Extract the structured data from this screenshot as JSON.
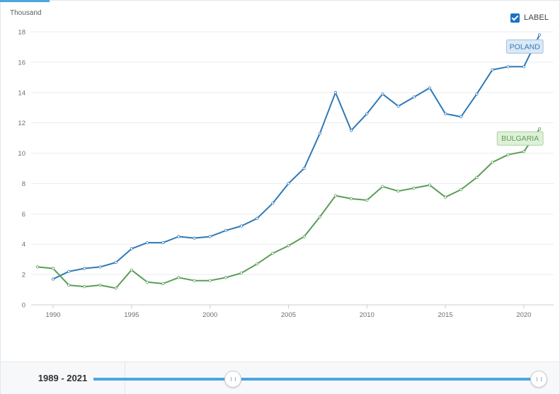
{
  "chart_data": {
    "type": "line",
    "unit_label": "Thousand",
    "legend_label": "LABEL",
    "legend_checked": true,
    "x_ticks": [
      1990,
      1995,
      2000,
      2005,
      2010,
      2015,
      2020
    ],
    "y_ticks": [
      0,
      2,
      4,
      6,
      8,
      10,
      12,
      14,
      16,
      18
    ],
    "xlim": [
      1988.6,
      2021.9
    ],
    "ylim": [
      0,
      18
    ],
    "grid": "horizontal",
    "series": [
      {
        "name": "POLAND",
        "color": "#2e78b7",
        "label_bg": "#dce9f5",
        "label_border": "#9dbfdf",
        "points": [
          [
            1990,
            1.7
          ],
          [
            1991,
            2.2
          ],
          [
            1992,
            2.4
          ],
          [
            1993,
            2.5
          ],
          [
            1994,
            2.8
          ],
          [
            1995,
            3.7
          ],
          [
            1996,
            4.1
          ],
          [
            1997,
            4.1
          ],
          [
            1998,
            4.5
          ],
          [
            1999,
            4.4
          ],
          [
            2000,
            4.5
          ],
          [
            2001,
            4.9
          ],
          [
            2002,
            5.2
          ],
          [
            2003,
            5.7
          ],
          [
            2004,
            6.7
          ],
          [
            2005,
            8.0
          ],
          [
            2006,
            9.0
          ],
          [
            2007,
            11.3
          ],
          [
            2008,
            14.0
          ],
          [
            2009,
            11.5
          ],
          [
            2010,
            12.6
          ],
          [
            2011,
            13.9
          ],
          [
            2012,
            13.1
          ],
          [
            2013,
            13.7
          ],
          [
            2014,
            14.3
          ],
          [
            2015,
            12.6
          ],
          [
            2016,
            12.4
          ],
          [
            2017,
            13.9
          ],
          [
            2018,
            15.5
          ],
          [
            2019,
            15.7
          ],
          [
            2020,
            15.7
          ],
          [
            2021,
            17.8
          ]
        ]
      },
      {
        "name": "BULGARIA",
        "color": "#5a9e55",
        "label_bg": "#dff0d8",
        "label_border": "#a8d09e",
        "points": [
          [
            1989,
            2.5
          ],
          [
            1990,
            2.4
          ],
          [
            1991,
            1.3
          ],
          [
            1992,
            1.2
          ],
          [
            1993,
            1.3
          ],
          [
            1994,
            1.1
          ],
          [
            1995,
            2.3
          ],
          [
            1996,
            1.5
          ],
          [
            1997,
            1.4
          ],
          [
            1998,
            1.8
          ],
          [
            1999,
            1.6
          ],
          [
            2000,
            1.6
          ],
          [
            2001,
            1.8
          ],
          [
            2002,
            2.1
          ],
          [
            2003,
            2.7
          ],
          [
            2004,
            3.4
          ],
          [
            2005,
            3.9
          ],
          [
            2006,
            4.5
          ],
          [
            2007,
            5.8
          ],
          [
            2008,
            7.2
          ],
          [
            2009,
            7.0
          ],
          [
            2010,
            6.9
          ],
          [
            2011,
            7.8
          ],
          [
            2012,
            7.5
          ],
          [
            2013,
            7.7
          ],
          [
            2014,
            7.9
          ],
          [
            2015,
            7.1
          ],
          [
            2016,
            7.6
          ],
          [
            2017,
            8.4
          ],
          [
            2018,
            9.4
          ],
          [
            2019,
            9.9
          ],
          [
            2020,
            10.1
          ],
          [
            2021,
            11.6
          ]
        ]
      }
    ]
  },
  "range_slider": {
    "label": "1989 - 2021",
    "start_year": 1989,
    "end_year": 2021
  }
}
